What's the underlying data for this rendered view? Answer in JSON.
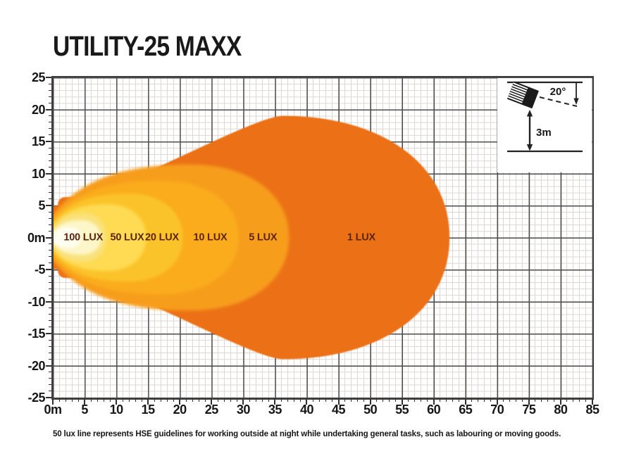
{
  "title": "UTILITY-25 MAXX",
  "footnote": "50 lux line represents HSE guidelines for working outside at night while undertaking general tasks, such as labouring or moving goods.",
  "inset": {
    "angle_label": "20°",
    "height_label": "3m"
  },
  "colors": {
    "major_grid": "#4d4d4d",
    "minor_grid": "#dcd6d2",
    "axis": "#3f3f3f",
    "lux_label_text": "#5E2408",
    "title_text": "#191919"
  },
  "chart_data": {
    "type": "area",
    "title": "UTILITY-25 MAXX",
    "x_axis": {
      "unit": "m",
      "min": 0,
      "max": 85,
      "major_step": 5,
      "minor_step": 1,
      "tick_labels": [
        "0m",
        "5",
        "10",
        "15",
        "20",
        "25",
        "30",
        "35",
        "40",
        "45",
        "50",
        "55",
        "60",
        "65",
        "70",
        "75",
        "80",
        "85"
      ]
    },
    "y_axis": {
      "unit": "m",
      "min": -25,
      "max": 25,
      "major_step": 5,
      "minor_step": 1,
      "tick_labels": [
        "25",
        "20",
        "15",
        "10",
        "5",
        "0m",
        "-5",
        "-10",
        "-15",
        "-20",
        "-25"
      ]
    },
    "grid": true,
    "legend_position": "in-plot-labels",
    "contours": [
      {
        "name": "contour-1-lux",
        "lux": 1,
        "label": "1 LUX",
        "color": "#EC7113",
        "x_max_m": 62.5,
        "y_half_m": 19.0,
        "tip_half_m": 4.9,
        "label_x_m": 48.6,
        "stem": {
          "x0_m": 0.8,
          "x1_m": 6.2,
          "y_half_m": 6.3
        }
      },
      {
        "name": "contour-5-lux",
        "lux": 5,
        "label": "5 LUX",
        "color": "#F79D1E",
        "x_max_m": 37.2,
        "y_half_m": 11.4,
        "tip_half_m": 3.6,
        "label_x_m": 33.1
      },
      {
        "name": "contour-10-lux",
        "lux": 10,
        "label": "10 LUX",
        "color": "#FAAC1E",
        "x_max_m": 29.3,
        "y_half_m": 8.9,
        "tip_half_m": 3.0,
        "label_x_m": 24.8
      },
      {
        "name": "contour-20-lux",
        "lux": 20,
        "label": "20 LUX",
        "color": "#FBC32C",
        "x_max_m": 20.5,
        "y_half_m": 6.9,
        "tip_half_m": 2.4,
        "label_x_m": 17.2
      },
      {
        "name": "contour-50-lux",
        "lux": 50,
        "label": "50 LUX",
        "color": "#FEDB52",
        "x_max_m": 14.7,
        "y_half_m": 5.2,
        "tip_half_m": 1.8,
        "label_x_m": 11.7
      },
      {
        "name": "contour-100-lux",
        "lux": 100,
        "label": "100 LUX",
        "color": "#F9E27C",
        "x_max_m": 8.4,
        "y_half_m": 3.8,
        "tip_half_m": 1.2,
        "label_x_m": 4.8
      },
      {
        "name": "contour-core",
        "lux": null,
        "label": "",
        "color": "#FDF6C9",
        "x_max_m": 7.6,
        "y_half_m": 2.7,
        "tip_half_m": 0.8
      },
      {
        "name": "contour-hotspot",
        "lux": null,
        "label": "",
        "color": "#FFFEF0",
        "x_max_m": 4.4,
        "y_half_m": 1.6,
        "tip_half_m": 0.5
      }
    ],
    "mounting": {
      "height_m": 3,
      "tilt_deg": 20
    }
  }
}
